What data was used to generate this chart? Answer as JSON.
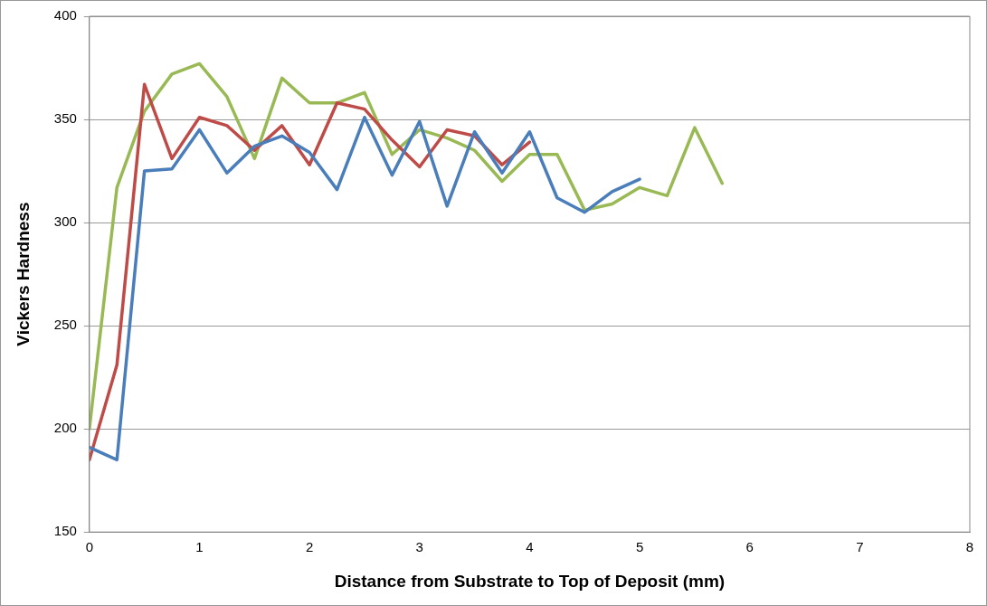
{
  "chart_data": {
    "type": "line",
    "xlabel": "Distance from Substrate to Top of Deposit (mm)",
    "ylabel": "Vickers Hardness",
    "xlim": [
      0,
      8
    ],
    "xticks": [
      0,
      1,
      2,
      3,
      4,
      5,
      6,
      7,
      8
    ],
    "ylim": [
      150,
      400
    ],
    "yticks": [
      150,
      200,
      250,
      300,
      350,
      400
    ],
    "grid": "y",
    "legend": false,
    "marker": "none",
    "series": [
      {
        "color": "#4a7ebb",
        "x": [
          0,
          0.25,
          0.5,
          0.75,
          1,
          1.25,
          1.5,
          1.75,
          2,
          2.25,
          2.5,
          2.75,
          3,
          3.25,
          3.5,
          3.75,
          4,
          4.25,
          4.5,
          4.75,
          5
        ],
        "values": [
          191,
          185,
          325,
          326,
          345,
          324,
          337,
          342,
          334,
          316,
          351,
          323,
          349,
          308,
          344,
          324,
          344,
          312,
          305,
          315,
          321
        ]
      },
      {
        "color": "#be4b48",
        "x": [
          0,
          0.25,
          0.5,
          0.75,
          1,
          1.25,
          1.5,
          1.75,
          2,
          2.25,
          2.5,
          2.75,
          3,
          3.25,
          3.5,
          3.75,
          4
        ],
        "values": [
          185,
          231,
          367,
          331,
          351,
          347,
          335,
          347,
          328,
          358,
          355,
          340,
          327,
          345,
          342,
          328,
          339
        ]
      },
      {
        "color": "#98b954",
        "x": [
          0,
          0.25,
          0.5,
          0.75,
          1,
          1.25,
          1.5,
          1.75,
          2,
          2.25,
          2.5,
          2.75,
          3,
          3.25,
          3.5,
          3.75,
          4,
          4.25,
          4.5,
          4.75,
          5,
          5.25,
          5.5,
          5.75
        ],
        "values": [
          200,
          317,
          354,
          372,
          377,
          361,
          331,
          370,
          358,
          358,
          363,
          333,
          345,
          341,
          335,
          320,
          333,
          333,
          306,
          309,
          317,
          313,
          346,
          319
        ]
      }
    ]
  }
}
